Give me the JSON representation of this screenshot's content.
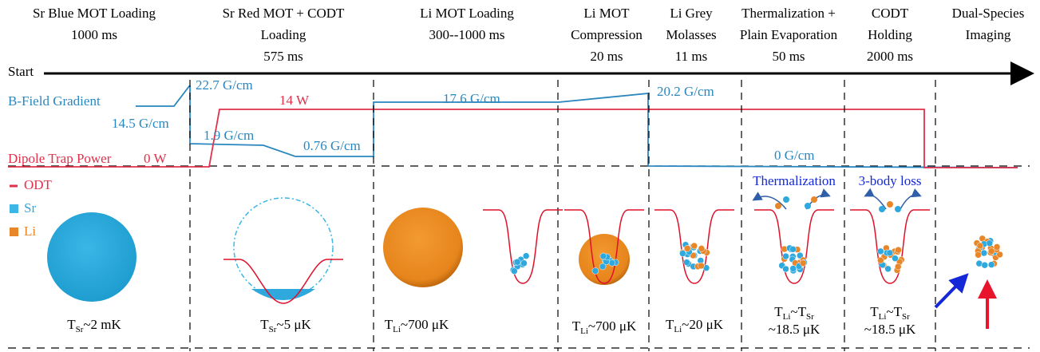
{
  "stages": [
    {
      "lines": [
        "Sr Blue MOT Loading",
        "1000 ms"
      ]
    },
    {
      "lines": [
        "Sr Red MOT + CODT",
        "Loading",
        "575 ms"
      ]
    },
    {
      "lines": [
        "Li MOT Loading",
        "300--1000 ms"
      ]
    },
    {
      "lines": [
        "Li MOT",
        "Compression",
        "20 ms"
      ]
    },
    {
      "lines": [
        "Li Grey",
        "Molasses",
        "11 ms"
      ]
    },
    {
      "lines": [
        "Thermalization +",
        "Plain Evaporation",
        "50 ms"
      ]
    },
    {
      "lines": [
        "CODT",
        "Holding",
        "2000 ms"
      ]
    },
    {
      "lines": [
        "Dual-Species",
        "Imaging"
      ]
    }
  ],
  "start": "Start",
  "traces": {
    "b_field": "B-Field Gradient",
    "dipole": "Dipole Trap Power"
  },
  "b_labels": [
    "14.5 G/cm",
    "22.7 G/cm",
    "1.9 G/cm",
    "0.76 G/cm",
    "17.6 G/cm",
    "20.2 G/cm",
    "0 G/cm"
  ],
  "power_labels": [
    "14 W",
    "0 W"
  ],
  "legend": [
    "ODT",
    "Sr",
    "Li"
  ],
  "processes": [
    "Thermalization",
    "3-body loss"
  ],
  "temperatures": [
    [
      [
        "T",
        "Sr",
        "~2 mK"
      ]
    ],
    [
      [
        "T",
        "Sr",
        "~5 μK"
      ]
    ],
    [
      [
        "T",
        "Li",
        "~700 μK"
      ]
    ],
    [
      [
        "T",
        "Li",
        "~700 μK"
      ]
    ],
    [
      [
        "T",
        "Li",
        "~20 μK"
      ]
    ],
    [
      [
        "T",
        "Li",
        "~T",
        "Sr"
      ],
      [
        "~18.5 μK"
      ]
    ],
    [
      [
        "T",
        "Li",
        "~T",
        "Sr"
      ],
      [
        "~18.5 μK"
      ]
    ]
  ]
}
